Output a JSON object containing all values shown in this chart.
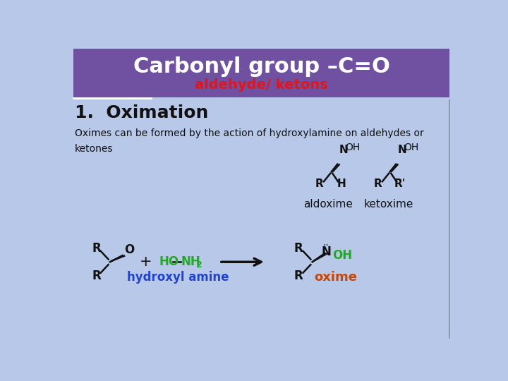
{
  "bg_color": "#b8c8e8",
  "header_bg": "#7050a0",
  "header_title": "Carbonyl group –C=O",
  "header_subtitle": "aldehyde/ ketons",
  "header_title_color": "#ffffff",
  "header_subtitle_color": "#ee1111",
  "section_title": "1.  Oximation",
  "section_title_color": "#111111",
  "body_text": "Oximes can be formed by the action of hydroxylamine on aldehydes or\nketones",
  "body_text_color": "#111111",
  "label_aldoxime": "aldoxime",
  "label_ketoxime": "ketoxime",
  "label_color": "#111111",
  "green_color": "#22aa22",
  "blue_color": "#2244cc",
  "red_oxime": "#cc4400",
  "arrow_color": "#111111",
  "sep_line_color": "#8090aa"
}
